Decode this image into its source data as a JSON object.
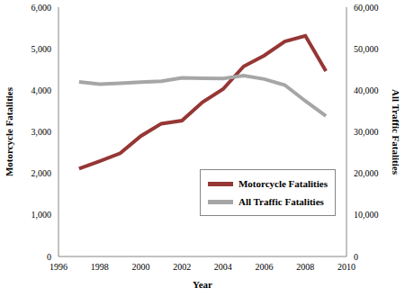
{
  "chart_data": {
    "type": "line",
    "x_label": "Year",
    "y_label": "Motorcycle Fatalities",
    "y2_label": "All Traffic Fatalities",
    "x": [
      1997,
      1998,
      1999,
      2000,
      2001,
      2002,
      2003,
      2004,
      2005,
      2006,
      2007,
      2008,
      2009
    ],
    "series": [
      {
        "name": "Motorcycle Fatalities",
        "color": "#953735",
        "values": [
          2116,
          2294,
          2483,
          2897,
          3197,
          3270,
          3714,
          4028,
          4576,
          4837,
          5174,
          5312,
          4462
        ]
      },
      {
        "name": "All Traffic Fatalities",
        "color": "#a6a6a6",
        "axis": "y2",
        "values": [
          42013,
          41501,
          41717,
          41945,
          42196,
          43005,
          42884,
          42836,
          43510,
          42708,
          41259,
          37423,
          33808
        ]
      }
    ],
    "xlim": [
      1996,
      2010
    ],
    "xticks": [
      1996,
      1998,
      2000,
      2002,
      2004,
      2006,
      2008,
      2010
    ],
    "ylim": [
      0,
      6000
    ],
    "yticks": [
      0,
      {
        "value": 1000,
        "label": "1,000"
      },
      {
        "value": 2000,
        "label": "2,000"
      },
      {
        "value": 3000,
        "label": "3,000"
      },
      {
        "value": 4000,
        "label": "4,000"
      },
      {
        "value": 5000,
        "label": "5,000"
      },
      {
        "value": 6000,
        "label": "6,000"
      }
    ],
    "y2lim": [
      0,
      60000
    ],
    "y2ticks": [
      0,
      {
        "value": 10000,
        "label": "10,000"
      },
      {
        "value": 20000,
        "label": "20,000"
      },
      {
        "value": 30000,
        "label": "30,000"
      },
      {
        "value": 40000,
        "label": "40,000"
      },
      {
        "value": 50000,
        "label": "50,000"
      },
      {
        "value": 60000,
        "label": "60,000"
      }
    ],
    "legend": "lower right",
    "grid": false
  }
}
